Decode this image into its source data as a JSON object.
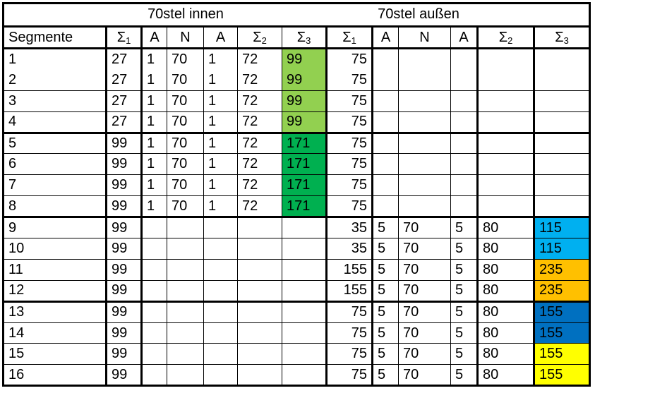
{
  "title": {
    "left": "70stel innen",
    "right": "70stel außen"
  },
  "headers": [
    "Segmente",
    "Σ1",
    "A",
    "N",
    "A",
    "Σ2",
    "Σ3",
    "Σ1",
    "A",
    "N",
    "A",
    "Σ2",
    "Σ3"
  ],
  "colors": {
    "light_green": "#92D050",
    "green": "#00B050",
    "light_blue": "#00B0F0",
    "orange": "#FFC000",
    "blue": "#0070C0",
    "yellow": "#FFFF00"
  },
  "rows": [
    {
      "cells": [
        "1",
        "27",
        "1",
        "70",
        "1",
        "72",
        "99",
        "75",
        "",
        "",
        "",
        "",
        ""
      ],
      "fill": "light_green"
    },
    {
      "cells": [
        "2",
        "27",
        "1",
        "70",
        "1",
        "72",
        "99",
        "75",
        "",
        "",
        "",
        "",
        ""
      ],
      "fill": "light_green"
    },
    {
      "cells": [
        "3",
        "27",
        "1",
        "70",
        "1",
        "72",
        "99",
        "75",
        "",
        "",
        "",
        "",
        ""
      ],
      "fill": "light_green"
    },
    {
      "cells": [
        "4",
        "27",
        "1",
        "70",
        "1",
        "72",
        "99",
        "75",
        "",
        "",
        "",
        "",
        ""
      ],
      "fill": "light_green"
    },
    {
      "cells": [
        "5",
        "99",
        "1",
        "70",
        "1",
        "72",
        "171",
        "75",
        "",
        "",
        "",
        "",
        ""
      ],
      "fill": "green"
    },
    {
      "cells": [
        "6",
        "99",
        "1",
        "70",
        "1",
        "72",
        "171",
        "75",
        "",
        "",
        "",
        "",
        ""
      ],
      "fill": "green"
    },
    {
      "cells": [
        "7",
        "99",
        "1",
        "70",
        "1",
        "72",
        "171",
        "75",
        "",
        "",
        "",
        "",
        ""
      ],
      "fill": "green"
    },
    {
      "cells": [
        "8",
        "99",
        "1",
        "70",
        "1",
        "72",
        "171",
        "75",
        "",
        "",
        "",
        "",
        ""
      ],
      "fill": "green"
    },
    {
      "cells": [
        "9",
        "99",
        "",
        "",
        "",
        "",
        "",
        "35",
        "5",
        "70",
        "5",
        "80",
        "115"
      ],
      "fill": "light_blue"
    },
    {
      "cells": [
        "10",
        "99",
        "",
        "",
        "",
        "",
        "",
        "35",
        "5",
        "70",
        "5",
        "80",
        "115"
      ],
      "fill": "light_blue"
    },
    {
      "cells": [
        "11",
        "99",
        "",
        "",
        "",
        "",
        "",
        "155",
        "5",
        "70",
        "5",
        "80",
        "235"
      ],
      "fill": "orange"
    },
    {
      "cells": [
        "12",
        "99",
        "",
        "",
        "",
        "",
        "",
        "155",
        "5",
        "70",
        "5",
        "80",
        "235"
      ],
      "fill": "orange"
    },
    {
      "cells": [
        "13",
        "99",
        "",
        "",
        "",
        "",
        "",
        "75",
        "5",
        "70",
        "5",
        "80",
        "155"
      ],
      "fill": "blue"
    },
    {
      "cells": [
        "14",
        "99",
        "",
        "",
        "",
        "",
        "",
        "75",
        "5",
        "70",
        "5",
        "80",
        "155"
      ],
      "fill": "blue"
    },
    {
      "cells": [
        "15",
        "99",
        "",
        "",
        "",
        "",
        "",
        "75",
        "5",
        "70",
        "5",
        "80",
        "155"
      ],
      "fill": "yellow"
    },
    {
      "cells": [
        "16",
        "99",
        "",
        "",
        "",
        "",
        "",
        "75",
        "5",
        "70",
        "5",
        "80",
        "155"
      ],
      "fill": "yellow"
    }
  ]
}
